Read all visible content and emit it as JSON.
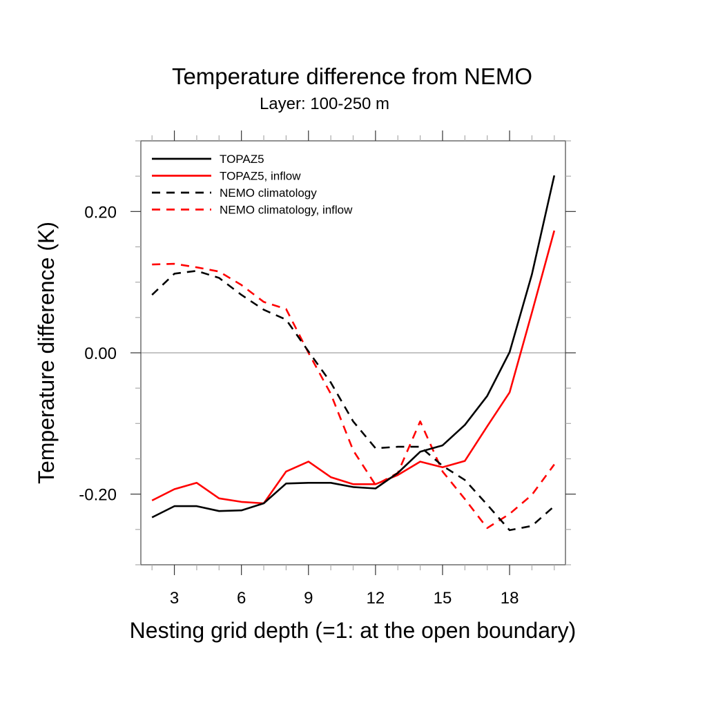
{
  "chart_data": {
    "type": "line",
    "title": "Temperature difference from NEMO",
    "subtitle": "Layer: 100-250 m",
    "xlabel": "Nesting grid depth (=1: at the open boundary)",
    "ylabel": "Temperature difference (K)",
    "xlim": [
      1.5,
      20.5
    ],
    "ylim": [
      -0.3,
      0.3
    ],
    "x_major_ticks": [
      3,
      6,
      9,
      12,
      15,
      18
    ],
    "x_tick_labels": [
      "3",
      "6",
      "9",
      "12",
      "15",
      "18"
    ],
    "x_minor_step": 1,
    "y_major_ticks": [
      -0.2,
      0.0,
      0.2
    ],
    "y_tick_labels": [
      "-0.20",
      "0.00",
      "0.20"
    ],
    "y_minor_step": 0.05,
    "reference_line": 0.0,
    "grid": false,
    "legend_position": "top-left",
    "x": [
      2,
      3,
      4,
      5,
      6,
      7,
      8,
      9,
      10,
      11,
      12,
      13,
      14,
      15,
      16,
      17,
      18,
      19,
      20
    ],
    "series": [
      {
        "name": "TOPAZ5",
        "color": "#000000",
        "style": "solid",
        "values": [
          -0.233,
          -0.217,
          -0.217,
          -0.224,
          -0.223,
          -0.213,
          -0.185,
          -0.184,
          -0.184,
          -0.19,
          -0.192,
          -0.17,
          -0.14,
          -0.131,
          -0.102,
          -0.061,
          0.001,
          0.111,
          0.251
        ]
      },
      {
        "name": "TOPAZ5, inflow",
        "color": "#ff0000",
        "style": "solid",
        "values": [
          -0.209,
          -0.193,
          -0.184,
          -0.206,
          -0.211,
          -0.213,
          -0.168,
          -0.154,
          -0.176,
          -0.186,
          -0.186,
          -0.173,
          -0.154,
          -0.162,
          -0.153,
          -0.104,
          -0.056,
          0.057,
          0.173
        ]
      },
      {
        "name": "NEMO climatology",
        "color": "#000000",
        "style": "dashed",
        "values": [
          0.082,
          0.112,
          0.116,
          0.106,
          0.082,
          0.061,
          0.047,
          0.002,
          -0.042,
          -0.097,
          -0.135,
          -0.133,
          -0.133,
          -0.16,
          -0.18,
          -0.215,
          -0.251,
          -0.245,
          -0.217
        ]
      },
      {
        "name": "NEMO climatology, inflow",
        "color": "#ff0000",
        "style": "dashed",
        "values": [
          0.125,
          0.126,
          0.121,
          0.115,
          0.096,
          0.072,
          0.062,
          0.0,
          -0.058,
          -0.138,
          -0.187,
          -0.17,
          -0.097,
          -0.168,
          -0.207,
          -0.248,
          -0.228,
          -0.201,
          -0.158
        ]
      }
    ]
  }
}
